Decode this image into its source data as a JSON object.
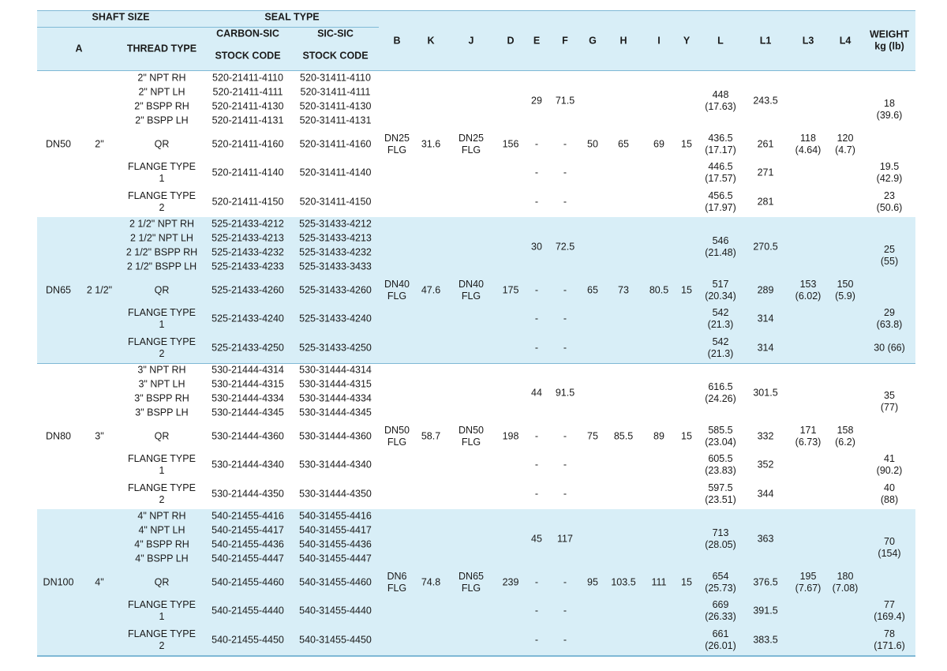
{
  "header": {
    "shaft_size": "SHAFT SIZE",
    "seal_type": "SEAL TYPE",
    "carbon_sic": "CARBON-SIC",
    "sic_sic": "SIC-SIC",
    "a": "A",
    "thread_type": "THREAD TYPE",
    "stock_code_1": "STOCK CODE",
    "stock_code_2": "STOCK CODE",
    "b": "B",
    "k": "K",
    "j": "J",
    "d": "D",
    "e": "E",
    "f": "F",
    "g": "G",
    "h": "H",
    "i": "I",
    "y": "Y",
    "l": "L",
    "l1": "L1",
    "l3": "L3",
    "l4": "L4",
    "weight_1": "WEIGHT",
    "weight_2": "kg (lb)"
  },
  "colors": {
    "header_bg": "#d8eef7",
    "band_bg": "#d8eef7",
    "rule": "#7fb9d6",
    "text": "#1a1a1a"
  },
  "groups": [
    {
      "dn": "DN50",
      "a": "2\"",
      "b": [
        "DN25",
        "FLG"
      ],
      "k": "31.6",
      "j": [
        "DN25",
        "FLG"
      ],
      "d": "156",
      "g": "50",
      "h": "65",
      "i": "69",
      "y": "15",
      "l3": [
        "118",
        "(4.64)"
      ],
      "l4": [
        "120",
        "(4.7)"
      ],
      "thread_e": "29",
      "thread_f": "71.5",
      "thread_l": [
        "448",
        "(17.63)"
      ],
      "thread_l1": "243.5",
      "thread_weight": [
        "18",
        "(39.6)"
      ],
      "rows": [
        {
          "type": [
            "2\" NPT RH"
          ],
          "c1": "520-21411-4110",
          "c2": "520-31411-4110"
        },
        {
          "type": [
            "2\" NPT LH"
          ],
          "c1": "520-21411-4111",
          "c2": "520-31411-4111"
        },
        {
          "type": [
            "2\" BSPP RH"
          ],
          "c1": "520-21411-4130",
          "c2": "520-31411-4130"
        },
        {
          "type": [
            "2\" BSPP LH"
          ],
          "c1": "520-21411-4131",
          "c2": "520-31411-4131"
        },
        {
          "type": [
            "QR"
          ],
          "c1": "520-21411-4160",
          "c2": "520-31411-4160",
          "e": "-",
          "f": "-",
          "l": [
            "436.5",
            "(17.17)"
          ],
          "l1": "261",
          "weight": []
        },
        {
          "type": [
            "FLANGE TYPE",
            "1"
          ],
          "c1": "520-21411-4140",
          "c2": "520-31411-4140",
          "e": "-",
          "f": "-",
          "l": [
            "446.5",
            "(17.57)"
          ],
          "l1": "271",
          "weight": [
            "19.5",
            "(42.9)"
          ]
        },
        {
          "type": [
            "FLANGE TYPE",
            "2"
          ],
          "c1": "520-21411-4150",
          "c2": "520-31411-4150",
          "e": "-",
          "f": "-",
          "l": [
            "456.5",
            "(17.97)"
          ],
          "l1": "281",
          "weight": [
            "23",
            "(50.6)"
          ]
        }
      ]
    },
    {
      "dn": "DN65",
      "a": "2 1/2\"",
      "b": [
        "DN40",
        "FLG"
      ],
      "k": "47.6",
      "j": [
        "DN40",
        "FLG"
      ],
      "d": "175",
      "g": "65",
      "h": "73",
      "i": "80.5",
      "y": "15",
      "l3": [
        "153",
        "(6.02)"
      ],
      "l4": [
        "150",
        "(5.9)"
      ],
      "thread_e": "30",
      "thread_f": "72.5",
      "thread_l": [
        "546",
        "(21.48)"
      ],
      "thread_l1": "270.5",
      "thread_weight": [
        "25",
        "(55)"
      ],
      "rows": [
        {
          "type": [
            "2 1/2\" NPT RH"
          ],
          "c1": "525-21433-4212",
          "c2": "525-31433-4212"
        },
        {
          "type": [
            "2 1/2\" NPT LH"
          ],
          "c1": "525-21433-4213",
          "c2": "525-31433-4213"
        },
        {
          "type": [
            "2 1/2\" BSPP RH"
          ],
          "c1": "525-21433-4232",
          "c2": "525-31433-4232"
        },
        {
          "type": [
            "2 1/2\" BSPP LH"
          ],
          "c1": "525-21433-4233",
          "c2": "525-31433-3433"
        },
        {
          "type": [
            "QR"
          ],
          "c1": "525-21433-4260",
          "c2": "525-31433-4260",
          "e": "-",
          "f": "-",
          "l": [
            "517",
            "(20.34)"
          ],
          "l1": "289",
          "weight": []
        },
        {
          "type": [
            "FLANGE TYPE",
            "1"
          ],
          "c1": "525-21433-4240",
          "c2": "525-31433-4240",
          "e": "-",
          "f": "-",
          "l": [
            "542",
            "(21.3)"
          ],
          "l1": "314",
          "weight": [
            "29",
            "(63.8)"
          ]
        },
        {
          "type": [
            "FLANGE TYPE",
            "2"
          ],
          "c1": "525-21433-4250",
          "c2": "525-31433-4250",
          "e": "-",
          "f": "-",
          "l": [
            "542",
            "(21.3)"
          ],
          "l1": "314",
          "weight": [
            "30   (66)"
          ]
        }
      ]
    },
    {
      "dn": "DN80",
      "a": "3\"",
      "b": [
        "DN50",
        "FLG"
      ],
      "k": "58.7",
      "j": [
        "DN50",
        "FLG"
      ],
      "d": "198",
      "g": "75",
      "h": "85.5",
      "i": "89",
      "y": "15",
      "l3": [
        "171",
        "(6.73)"
      ],
      "l4": [
        "158",
        "(6.2)"
      ],
      "thread_e": "44",
      "thread_f": "91.5",
      "thread_l": [
        "616.5",
        "(24.26)"
      ],
      "thread_l1": "301.5",
      "thread_weight": [
        "35",
        "(77)"
      ],
      "rows": [
        {
          "type": [
            "3\" NPT RH"
          ],
          "c1": "530-21444-4314",
          "c2": "530-31444-4314"
        },
        {
          "type": [
            "3\" NPT LH"
          ],
          "c1": "530-21444-4315",
          "c2": "530-31444-4315"
        },
        {
          "type": [
            "3\" BSPP RH"
          ],
          "c1": "530-21444-4334",
          "c2": "530-31444-4334"
        },
        {
          "type": [
            "3\" BSPP LH"
          ],
          "c1": "530-21444-4345",
          "c2": "530-31444-4345"
        },
        {
          "type": [
            "QR"
          ],
          "c1": "530-21444-4360",
          "c2": "530-31444-4360",
          "e": "-",
          "f": "-",
          "l": [
            "585.5",
            "(23.04)"
          ],
          "l1": "332",
          "weight": []
        },
        {
          "type": [
            "FLANGE TYPE",
            "1"
          ],
          "c1": "530-21444-4340",
          "c2": "530-31444-4340",
          "e": "-",
          "f": "-",
          "l": [
            "605.5",
            "(23.83)"
          ],
          "l1": "352",
          "weight": [
            "41",
            "(90.2)"
          ]
        },
        {
          "type": [
            "FLANGE TYPE",
            "2"
          ],
          "c1": "530-21444-4350",
          "c2": "530-31444-4350",
          "e": "-",
          "f": "-",
          "l": [
            "597.5",
            "(23.51)"
          ],
          "l1": "344",
          "weight": [
            "40",
            "(88)"
          ]
        }
      ]
    },
    {
      "dn": "DN100",
      "a": "4\"",
      "b": [
        "DN6",
        "FLG"
      ],
      "k": "74.8",
      "j": [
        "DN65",
        "FLG"
      ],
      "d": "239",
      "g": "95",
      "h": "103.5",
      "i": "111",
      "y": "15",
      "l3": [
        "195",
        "(7.67)"
      ],
      "l4": [
        "180",
        "(7.08)"
      ],
      "thread_e": "45",
      "thread_f": "117",
      "thread_l": [
        "713",
        "(28.05)"
      ],
      "thread_l1": "363",
      "thread_weight": [
        "70",
        "(154)"
      ],
      "rows": [
        {
          "type": [
            "4\" NPT RH"
          ],
          "c1": "540-21455-4416",
          "c2": "540-31455-4416"
        },
        {
          "type": [
            "4\" NPT LH"
          ],
          "c1": "540-21455-4417",
          "c2": "540-31455-4417"
        },
        {
          "type": [
            "4\" BSPP RH"
          ],
          "c1": "540-21455-4436",
          "c2": "540-31455-4436"
        },
        {
          "type": [
            "4\" BSPP LH"
          ],
          "c1": "540-21455-4447",
          "c2": "540-31455-4447"
        },
        {
          "type": [
            "QR"
          ],
          "c1": "540-21455-4460",
          "c2": "540-31455-4460",
          "e": "-",
          "f": "-",
          "l": [
            "654",
            "(25.73)"
          ],
          "l1": "376.5",
          "weight": []
        },
        {
          "type": [
            "FLANGE TYPE",
            "1"
          ],
          "c1": "540-21455-4440",
          "c2": "540-31455-4440",
          "e": "-",
          "f": "-",
          "l": [
            "669",
            "(26.33)"
          ],
          "l1": "391.5",
          "weight": [
            "77",
            "(169.4)"
          ]
        },
        {
          "type": [
            "FLANGE TYPE",
            "2"
          ],
          "c1": "540-21455-4450",
          "c2": "540-31455-4450",
          "e": "-",
          "f": "-",
          "l": [
            "661",
            "(26.01)"
          ],
          "l1": "383.5",
          "weight": [
            "78",
            "(171.6)"
          ]
        }
      ]
    }
  ]
}
